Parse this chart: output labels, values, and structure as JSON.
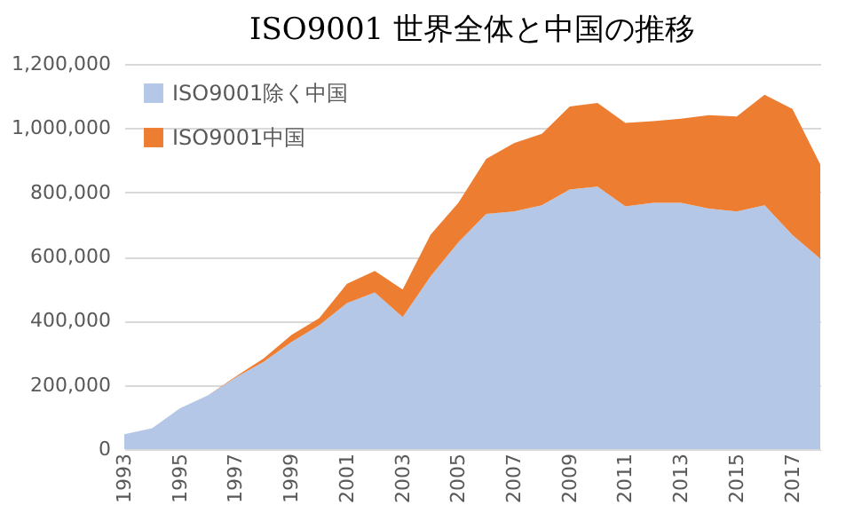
{
  "chart_data": {
    "type": "area",
    "title": "ISO9001  世界全体と中国の推移",
    "stacked": true,
    "categories": [
      "1993",
      null,
      "1995",
      null,
      "1997",
      null,
      "1999",
      null,
      "2001",
      null,
      "2003",
      null,
      "2005",
      null,
      "2007",
      null,
      "2009",
      null,
      "2011",
      null,
      "2013",
      null,
      "2015",
      null,
      "2017",
      null
    ],
    "series": [
      {
        "name": "ISO9001除く中国",
        "color": "#b4c7e7",
        "values": [
          46000,
          65000,
          127000,
          167000,
          223000,
          272000,
          333000,
          386000,
          455000,
          488000,
          411000,
          538000,
          644000,
          733000,
          740000,
          760000,
          809000,
          818000,
          756000,
          767000,
          767000,
          749000,
          740000,
          760000,
          667000,
          593000
        ]
      },
      {
        "name": "ISO9001中国",
        "color": "#ed7d31",
        "values": [
          0,
          0,
          0,
          0,
          3000,
          10000,
          22000,
          22000,
          60000,
          67000,
          86000,
          130000,
          123000,
          171000,
          213000,
          222000,
          258000,
          260000,
          260000,
          255000,
          262000,
          291000,
          296000,
          344000,
          393000,
          294000
        ]
      }
    ],
    "ylim": [
      0,
      1200000
    ],
    "yticks": [
      0,
      {
        "value": 200000,
        "label": "200,000"
      },
      {
        "value": 400000,
        "label": "400,000"
      },
      {
        "value": 600000,
        "label": "600,000"
      },
      {
        "value": 800000,
        "label": "800,000"
      },
      {
        "value": 1000000,
        "label": "1,000,000"
      },
      {
        "value": 1200000,
        "label": "1,200,000"
      }
    ],
    "grid": "y",
    "legend": "top left"
  }
}
